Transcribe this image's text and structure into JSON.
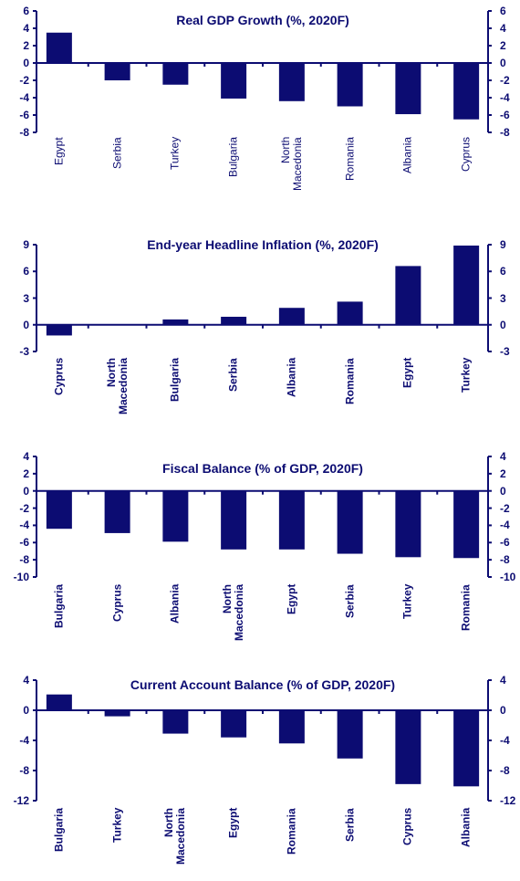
{
  "chart_data": [
    {
      "type": "bar",
      "title": "Real GDP Growth (%, 2020F)",
      "categories": [
        "Egypt",
        "Serbia",
        "Turkey",
        "Bulgaria",
        "North Macedonia",
        "Romania",
        "Albania",
        "Cyprus"
      ],
      "values": [
        3.5,
        -2,
        -2.5,
        -4.1,
        -4.4,
        -5,
        -5.9,
        -6.5
      ],
      "color": "#0c0c72",
      "ylim": [
        -8,
        6
      ],
      "yticks": [
        -8,
        -6,
        -4,
        -2,
        0,
        2,
        4,
        6
      ]
    },
    {
      "type": "bar",
      "title": "End-year Headline Inflation (%, 2020F)",
      "categories": [
        "Cyprus",
        "North Macedonia",
        "Bulgaria",
        "Serbia",
        "Albania",
        "Romania",
        "Egypt",
        "Turkey"
      ],
      "values": [
        -1.2,
        0,
        0.6,
        0.9,
        1.9,
        2.6,
        6.6,
        8.9
      ],
      "color": "#0c0c72",
      "ylim": [
        -3,
        9
      ],
      "yticks": [
        -3,
        0,
        3,
        6,
        9
      ]
    },
    {
      "type": "bar",
      "title": "Fiscal Balance (% of GDP, 2020F)",
      "categories": [
        "Bulgaria",
        "Cyprus",
        "Albania",
        "North Macedonia",
        "Egypt",
        "Serbia",
        "Turkey",
        "Romania"
      ],
      "values": [
        -4.4,
        -4.9,
        -5.9,
        -6.8,
        -6.8,
        -7.3,
        -7.7,
        -7.8
      ],
      "color": "#0c0c72",
      "ylim": [
        -10,
        4
      ],
      "yticks": [
        -10,
        -8,
        -6,
        -4,
        -2,
        0,
        2,
        4
      ]
    },
    {
      "type": "bar",
      "title": "Current Account Balance (% of GDP, 2020F)",
      "categories": [
        "Bulgaria",
        "Turkey",
        "North Macedonia",
        "Egypt",
        "Romania",
        "Serbia",
        "Cyprus",
        "Albania"
      ],
      "values": [
        2.1,
        -0.8,
        -3.1,
        -3.6,
        -4.4,
        -6.4,
        -9.8,
        -10.1
      ],
      "color": "#0c0c72",
      "ylim": [
        -12,
        4
      ],
      "yticks": [
        -12,
        -8,
        -4,
        0,
        4
      ]
    }
  ]
}
